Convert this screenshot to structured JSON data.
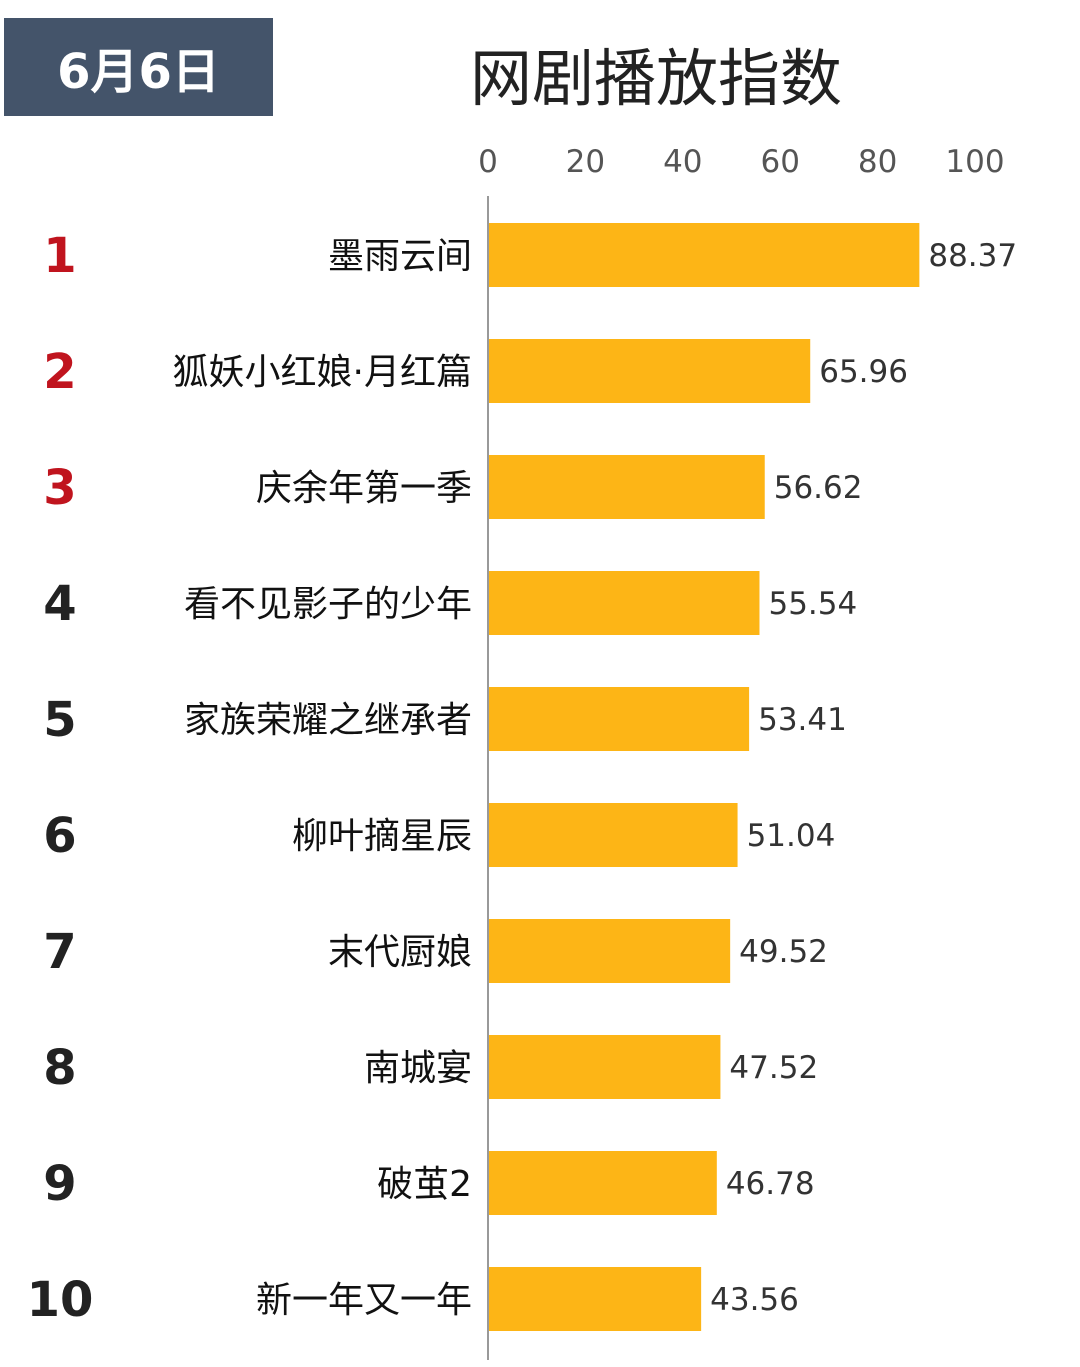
{
  "header": {
    "date": "6月6日"
  },
  "colors": {
    "bar": "#fdb516",
    "badge_bg": "#44546a",
    "rank_top": "#c0141e",
    "rank_other": "#222222",
    "axis": "#999999"
  },
  "chart_data": {
    "type": "bar",
    "orientation": "horizontal",
    "title": "网剧播放指数",
    "xlabel": "",
    "ylabel": "",
    "xlim": [
      0,
      100
    ],
    "ticks": [
      "0",
      "20",
      "40",
      "60",
      "80",
      "100"
    ],
    "tick_values": [
      0,
      20,
      40,
      60,
      80,
      100
    ],
    "grid": false,
    "legend": "none",
    "ranks": [
      "1",
      "2",
      "3",
      "4",
      "5",
      "6",
      "7",
      "8",
      "9",
      "10"
    ],
    "categories": [
      "墨雨云间",
      "狐妖小红娘·月红篇",
      "庆余年第一季",
      "看不见影子的少年",
      "家族荣耀之继承者",
      "柳叶摘星辰",
      "末代厨娘",
      "南城宴",
      "破茧2",
      "新一年又一年"
    ],
    "values": [
      88.37,
      65.96,
      56.62,
      55.54,
      53.41,
      51.04,
      49.52,
      47.52,
      46.78,
      43.56
    ],
    "value_labels": [
      "88.37",
      "65.96",
      "56.62",
      "55.54",
      "53.41",
      "51.04",
      "49.52",
      "47.52",
      "46.78",
      "43.56"
    ]
  }
}
